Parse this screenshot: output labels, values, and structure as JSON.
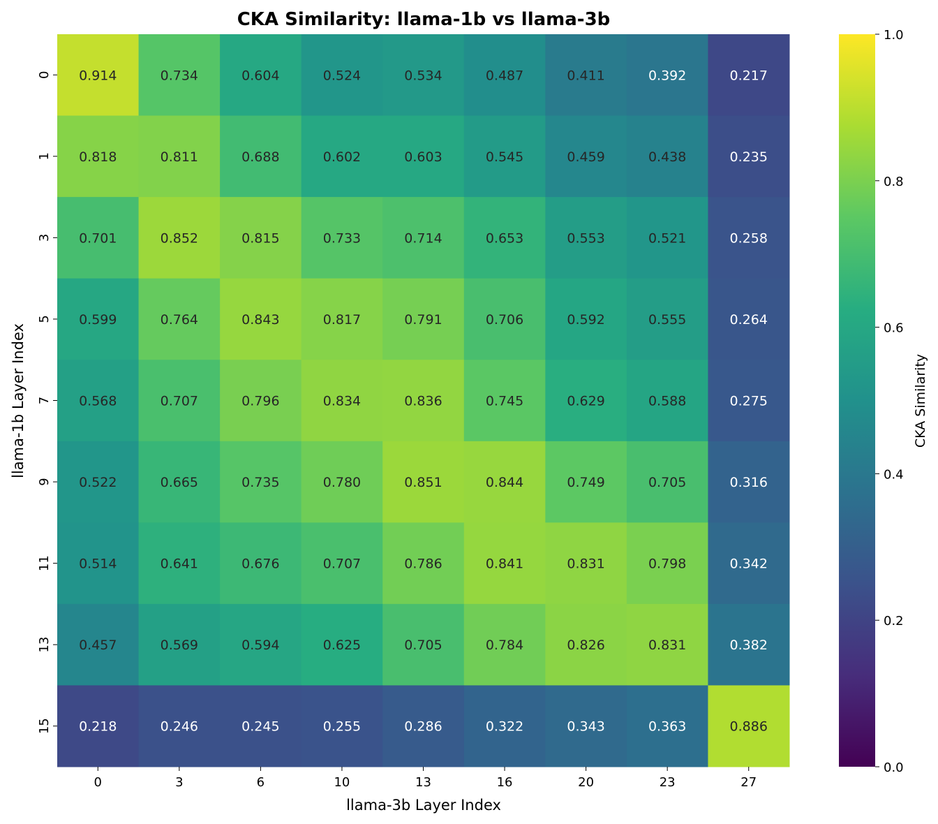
{
  "chart_data": {
    "type": "heatmap",
    "title": "CKA Similarity: llama-1b vs llama-3b",
    "xlabel": "llama-3b Layer Index",
    "ylabel": "llama-1b Layer Index",
    "x_categories": [
      "0",
      "3",
      "6",
      "10",
      "13",
      "16",
      "20",
      "23",
      "27"
    ],
    "y_categories": [
      "0",
      "1",
      "3",
      "5",
      "7",
      "9",
      "11",
      "13",
      "15"
    ],
    "values": [
      [
        0.914,
        0.734,
        0.604,
        0.524,
        0.534,
        0.487,
        0.411,
        0.392,
        0.217
      ],
      [
        0.818,
        0.811,
        0.688,
        0.602,
        0.603,
        0.545,
        0.459,
        0.438,
        0.235
      ],
      [
        0.701,
        0.852,
        0.815,
        0.733,
        0.714,
        0.653,
        0.553,
        0.521,
        0.258
      ],
      [
        0.599,
        0.764,
        0.843,
        0.817,
        0.791,
        0.706,
        0.592,
        0.555,
        0.264
      ],
      [
        0.568,
        0.707,
        0.796,
        0.834,
        0.836,
        0.745,
        0.629,
        0.588,
        0.275
      ],
      [
        0.522,
        0.665,
        0.735,
        0.78,
        0.851,
        0.844,
        0.749,
        0.705,
        0.316
      ],
      [
        0.514,
        0.641,
        0.676,
        0.707,
        0.786,
        0.841,
        0.831,
        0.798,
        0.342
      ],
      [
        0.457,
        0.569,
        0.594,
        0.625,
        0.705,
        0.784,
        0.826,
        0.831,
        0.382
      ],
      [
        0.218,
        0.246,
        0.245,
        0.255,
        0.286,
        0.322,
        0.343,
        0.363,
        0.886
      ]
    ],
    "colormap": "viridis",
    "vmin": 0.0,
    "vmax": 1.0,
    "colorbar": {
      "label": "CKA Similarity",
      "ticks": [
        "0.0",
        "0.2",
        "0.4",
        "0.6",
        "0.8",
        "1.0"
      ]
    }
  }
}
